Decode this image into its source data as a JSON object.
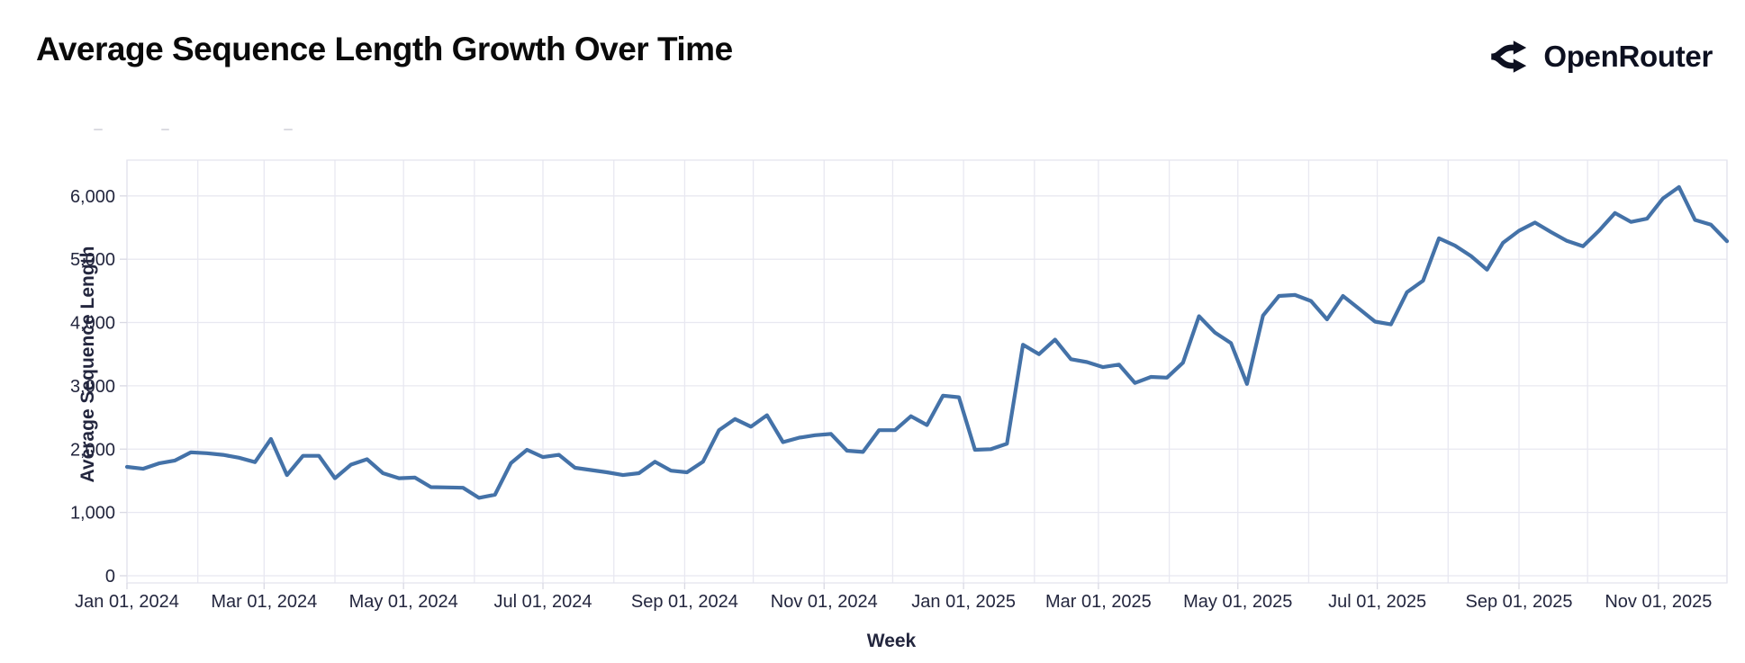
{
  "header": {
    "title": "Average Sequence Length Growth Over Time",
    "brand": {
      "name": "OpenRouter"
    }
  },
  "chart_data": {
    "type": "line",
    "title": "Average Sequence Length Growth Over Time",
    "xlabel": "Week",
    "ylabel": "Average Sequence Length",
    "x_start": "Jan 01, 2024",
    "x_end": "Dec 01, 2025",
    "cadence": "weekly",
    "ylim": [
      0,
      6500
    ],
    "grid": true,
    "y_ticks": [
      {
        "value": 0,
        "label": "0"
      },
      {
        "value": 1000,
        "label": "1,000"
      },
      {
        "value": 2000,
        "label": "2,000"
      },
      {
        "value": 3000,
        "label": "3,000"
      },
      {
        "value": 4000,
        "label": "4,000"
      },
      {
        "value": 5000,
        "label": "5,000"
      },
      {
        "value": 6000,
        "label": "6,000"
      }
    ],
    "x_ticks": [
      {
        "day": 0,
        "label": "Jan 01, 2024"
      },
      {
        "day": 60,
        "label": "Mar 01, 2024"
      },
      {
        "day": 121,
        "label": "May 01, 2024"
      },
      {
        "day": 182,
        "label": "Jul 01, 2024"
      },
      {
        "day": 244,
        "label": "Sep 01, 2024"
      },
      {
        "day": 305,
        "label": "Nov 01, 2024"
      },
      {
        "day": 366,
        "label": "Jan 01, 2025"
      },
      {
        "day": 425,
        "label": "Mar 01, 2025"
      },
      {
        "day": 486,
        "label": "May 01, 2025"
      },
      {
        "day": 547,
        "label": "Jul 01, 2025"
      },
      {
        "day": 609,
        "label": "Sep 01, 2025"
      },
      {
        "day": 670,
        "label": "Nov 01, 2025"
      }
    ],
    "month_gridline_days": [
      0,
      31,
      60,
      91,
      121,
      152,
      182,
      213,
      244,
      274,
      305,
      335,
      366,
      397,
      425,
      456,
      486,
      517,
      547,
      578,
      609,
      639,
      670,
      700
    ],
    "series": [
      {
        "name": "Average Sequence Length",
        "start": "Jan 01, 2024",
        "step_days": 7,
        "values": [
          1720,
          1690,
          1775,
          1820,
          1950,
          1935,
          1910,
          1865,
          1795,
          2160,
          1590,
          1895,
          1895,
          1540,
          1755,
          1840,
          1620,
          1540,
          1550,
          1400,
          1395,
          1390,
          1230,
          1280,
          1780,
          1990,
          1875,
          1910,
          1705,
          1670,
          1635,
          1590,
          1620,
          1800,
          1660,
          1635,
          1800,
          2300,
          2475,
          2355,
          2535,
          2110,
          2180,
          2220,
          2240,
          1975,
          1955,
          2300,
          2300,
          2520,
          2380,
          2845,
          2820,
          1990,
          2000,
          2085,
          3650,
          3500,
          3730,
          3420,
          3375,
          3295,
          3335,
          3045,
          3140,
          3130,
          3365,
          4100,
          3840,
          3675,
          3030,
          4110,
          4420,
          4435,
          4340,
          4050,
          4420,
          4220,
          4015,
          3970,
          4480,
          4660,
          5330,
          5215,
          5050,
          4835,
          5260,
          5450,
          5580,
          5430,
          5290,
          5205,
          5450,
          5730,
          5590,
          5640,
          5960,
          6140,
          5620,
          5545,
          5285
        ]
      }
    ],
    "colors": {
      "line": "#4472a8",
      "grid": "#e8e8f1",
      "frame": "#e4e4ee",
      "tick_text": "#23263e",
      "axis_title_text": "#23263e",
      "tick_mark": "#d9d9e3",
      "legend_fragment": "#dcdce2"
    },
    "legend_position": "clipped-top-left-fragment"
  }
}
